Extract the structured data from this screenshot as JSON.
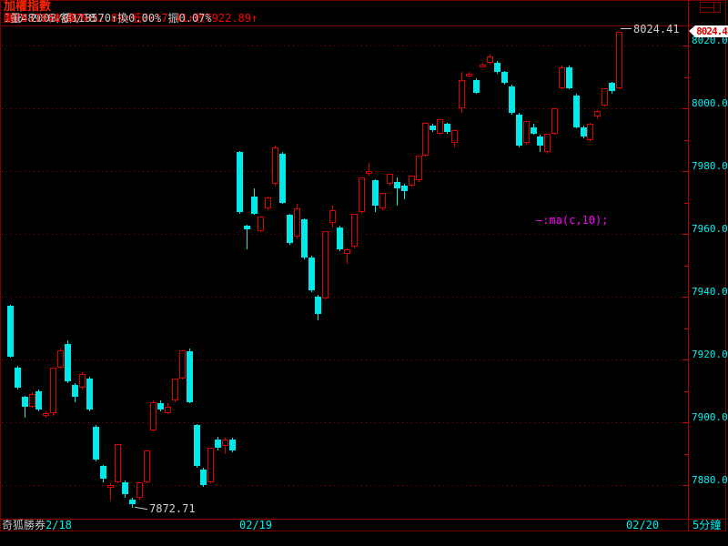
{
  "header": {
    "title": "加權指數",
    "info_segments": [
      {
        "text": "100 2008/02/18 ",
        "color": "#c8c8c8"
      },
      {
        "text": "開7917.41↑高7922.89↑低7917.41↑收7922.89↑",
        "color": "#ff0000"
      },
      {
        "text": " 量48986↓額118570↑換0.00% 振0.07% ",
        "color": "#c8c8c8"
      },
      {
        "text": "漲(5.70)0.07%",
        "color": "#ff0000"
      }
    ]
  },
  "price_tag": {
    "text": "8024.4",
    "text_color": "#dd0000",
    "bg": "#ffffff"
  },
  "y_axis": {
    "labels": [
      "8020.0",
      "8000.0",
      "7980.0",
      "7960.0",
      "7940.0",
      "7920.0",
      "7900.0",
      "7880.0"
    ],
    "color": "#00f0f0"
  },
  "time_axis": {
    "labels": [
      {
        "text": "奇狐勝券",
        "x": 2,
        "color": "#c8c8c8"
      },
      {
        "text": "2/18",
        "x": 50,
        "color": "#00f0f0"
      },
      {
        "text": "02/19",
        "x": 263,
        "color": "#00f0f0"
      },
      {
        "text": "02/20",
        "x": 688,
        "color": "#00f0f0"
      },
      {
        "text": "5分鐘",
        "x": 761,
        "color": "#00f0f0"
      }
    ]
  },
  "annotations": {
    "high": {
      "text": "8024.41",
      "price": 8024.41
    },
    "low": {
      "text": "7872.71",
      "price": 7872.71
    },
    "ma_formula": {
      "text": "—:ma(c,10);",
      "color": "#ff00ff"
    }
  },
  "colors": {
    "up_candle": "#dd0000",
    "down_candle": "#00e8e8",
    "grid": "#990000",
    "axis_line": "#b80000",
    "axis_label": "#00f0f0",
    "frame": "#7a0000"
  },
  "chart_data": {
    "type": "candlestick",
    "title": "加權指數",
    "interval": "5分鐘",
    "ylim": [
      7870,
      8030
    ],
    "y_tick_step": 20,
    "days": [
      "2/18",
      "02/19",
      "02/20"
    ],
    "day_start_indices": [
      0,
      32,
      85
    ],
    "annotated_high": 8024.41,
    "annotated_low": 7872.71,
    "candles": [
      [
        7937,
        7937.5,
        7920.5,
        7921
      ],
      [
        7917.5,
        7918,
        7910.5,
        7911
      ],
      [
        7908,
        7908.5,
        7901.5,
        7905
      ],
      [
        7905,
        7909.5,
        7904.5,
        7909
      ],
      [
        7910,
        7910.5,
        7903.5,
        7904
      ],
      [
        7902.5,
        7903.5,
        7901.5,
        7903
      ],
      [
        7903,
        7917.5,
        7902,
        7917.5
      ],
      [
        7917.5,
        7923.5,
        7917,
        7923
      ],
      [
        7925,
        7926,
        7912.5,
        7913
      ],
      [
        7912,
        7912.5,
        7906.5,
        7908
      ],
      [
        7911,
        7916,
        7910.5,
        7915.5
      ],
      [
        7914,
        7914.5,
        7903.5,
        7904
      ],
      [
        7898.5,
        7899,
        7887.5,
        7888
      ],
      [
        7886,
        7886.5,
        7881,
        7882
      ],
      [
        7879,
        7880.5,
        7875,
        7880
      ],
      [
        7881,
        7893,
        7880.5,
        7893
      ],
      [
        7881,
        7881.5,
        7876,
        7877
      ],
      [
        7875.5,
        7876,
        7872.71,
        7874
      ],
      [
        7876,
        7881,
        7875.5,
        7881
      ],
      [
        7881,
        7891,
        7880.5,
        7891
      ],
      [
        7897.5,
        7907,
        7897,
        7906.5
      ],
      [
        7906,
        7907,
        7903.5,
        7904
      ],
      [
        7903,
        7906,
        7902.5,
        7905
      ],
      [
        7907,
        7914,
        7906.5,
        7914
      ],
      [
        7914,
        7922.89,
        7913.5,
        7922.89
      ],
      [
        7922.5,
        7923.5,
        7906,
        7906.5
      ],
      [
        7899,
        7899.5,
        7885.5,
        7886
      ],
      [
        7885,
        7885.5,
        7879.5,
        7880
      ],
      [
        7881,
        7892,
        7880.5,
        7892
      ],
      [
        7894.5,
        7895.5,
        7891,
        7892
      ],
      [
        7892.5,
        7895,
        7890,
        7894.5
      ],
      [
        7894.5,
        7895,
        7890.5,
        7891
      ],
      [
        7986,
        7986.5,
        7966.5,
        7967
      ],
      [
        7962.5,
        7963,
        7955,
        7961.5
      ],
      [
        7972,
        7974.5,
        7966,
        7966.5
      ],
      [
        7961,
        7965.5,
        7960.5,
        7965.5
      ],
      [
        7968,
        7972,
        7967.5,
        7971.5
      ],
      [
        7976,
        7988,
        7975.5,
        7987.5
      ],
      [
        7985.5,
        7986,
        7969.5,
        7970
      ],
      [
        7966,
        7966.5,
        7956.5,
        7957
      ],
      [
        7959,
        7969.5,
        7958.5,
        7968
      ],
      [
        7964.5,
        7965,
        7952,
        7952.5
      ],
      [
        7952.5,
        7953,
        7941.5,
        7942
      ],
      [
        7940,
        7940.5,
        7932.5,
        7934.5
      ],
      [
        7939.5,
        7961,
        7939,
        7961
      ],
      [
        7963.5,
        7969,
        7962,
        7967.5
      ],
      [
        7962,
        7962.5,
        7954.5,
        7955
      ],
      [
        7953.5,
        7955.5,
        7950.5,
        7955
      ],
      [
        7956,
        7966.5,
        7955.5,
        7966.5
      ],
      [
        7967,
        7978,
        7966.5,
        7978
      ],
      [
        7979.5,
        7982.5,
        7978.5,
        7980
      ],
      [
        7977,
        7977.5,
        7967,
        7969
      ],
      [
        7968,
        7973,
        7967.5,
        7973
      ],
      [
        7976,
        7979,
        7975.5,
        7979
      ],
      [
        7976.5,
        7978,
        7969,
        7974.5
      ],
      [
        7975.5,
        7976,
        7971,
        7973.5
      ],
      [
        7975.5,
        7978.5,
        7975,
        7978.5
      ],
      [
        7977,
        7985,
        7976.5,
        7985
      ],
      [
        7985,
        7995.5,
        7984.5,
        7995.5
      ],
      [
        7994.5,
        7995,
        7992.5,
        7993
      ],
      [
        7992,
        7996.5,
        7991.5,
        7996.5
      ],
      [
        7995,
        7995.5,
        7992,
        7992.5
      ],
      [
        7989,
        7993,
        7987.5,
        7993
      ],
      [
        8000,
        8011.5,
        7998.5,
        8009
      ],
      [
        8010.5,
        8011.5,
        8010,
        8011
      ],
      [
        8009,
        8009.5,
        8004.5,
        8005
      ],
      [
        8013,
        8014.5,
        8013,
        8014
      ],
      [
        8014.5,
        8017,
        8014,
        8016.5
      ],
      [
        8014.5,
        8015,
        8011,
        8011.5
      ],
      [
        8011.5,
        8012,
        8007.5,
        8008
      ],
      [
        8007,
        8007.5,
        7998,
        7998.5
      ],
      [
        7998,
        7998.5,
        7987.5,
        7988
      ],
      [
        7989,
        7996,
        7988.5,
        7996
      ],
      [
        7994,
        7995,
        7991.5,
        7992
      ],
      [
        7991,
        7991.5,
        7986,
        7988
      ],
      [
        7986,
        7992,
        7985.5,
        7992
      ],
      [
        7992,
        8000,
        7991.5,
        8000
      ],
      [
        8006.5,
        8013.5,
        8006,
        8013
      ],
      [
        8013,
        8013.5,
        8006,
        8006.5
      ],
      [
        8004,
        8004.5,
        7993.5,
        7994
      ],
      [
        7994,
        7994.5,
        7990.5,
        7991
      ],
      [
        7990,
        7995.5,
        7989.5,
        7995
      ],
      [
        7997.5,
        7999.5,
        7996.5,
        7999
      ],
      [
        8001,
        8006.5,
        8000.5,
        8006.5
      ],
      [
        8008,
        8008.5,
        8004.5,
        8005.5
      ],
      [
        8006.5,
        8024.41,
        8006,
        8024.41
      ]
    ]
  }
}
